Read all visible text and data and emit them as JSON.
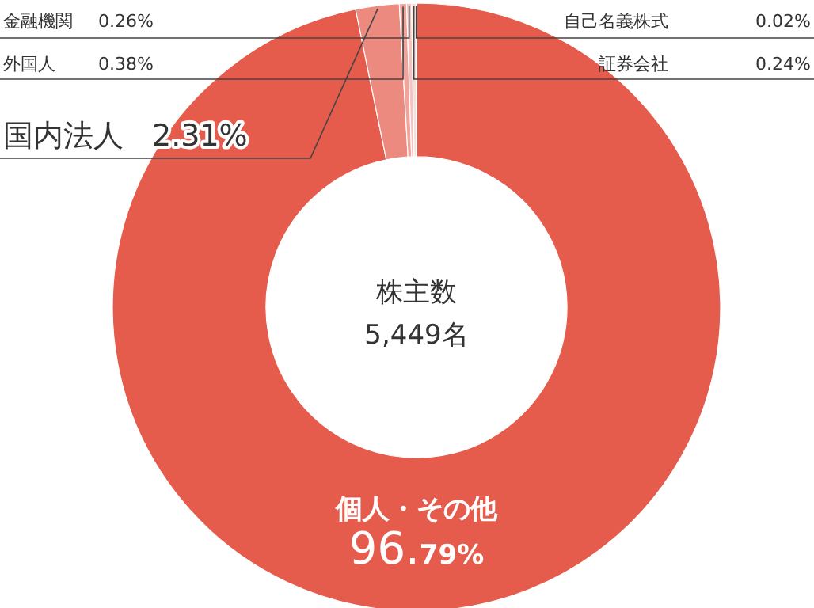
{
  "chart_data": {
    "type": "donut",
    "categories": [
      "個人・その他",
      "国内法人",
      "外国人",
      "金融機関",
      "証券会社",
      "自己名義株式"
    ],
    "values": [
      96.79,
      2.31,
      0.38,
      0.26,
      0.24,
      0.02
    ],
    "colors": [
      "#e55b4c",
      "#ec8a80",
      "#f2a39b",
      "#f6c2bd",
      "#fadcd9",
      "#fdeeed"
    ],
    "value_labels": [
      "96.79%",
      "2.31%",
      "0.38%",
      "0.26%",
      "0.24%",
      "0.02%"
    ],
    "annotations": [
      "株主数",
      "5,449名"
    ]
  }
}
